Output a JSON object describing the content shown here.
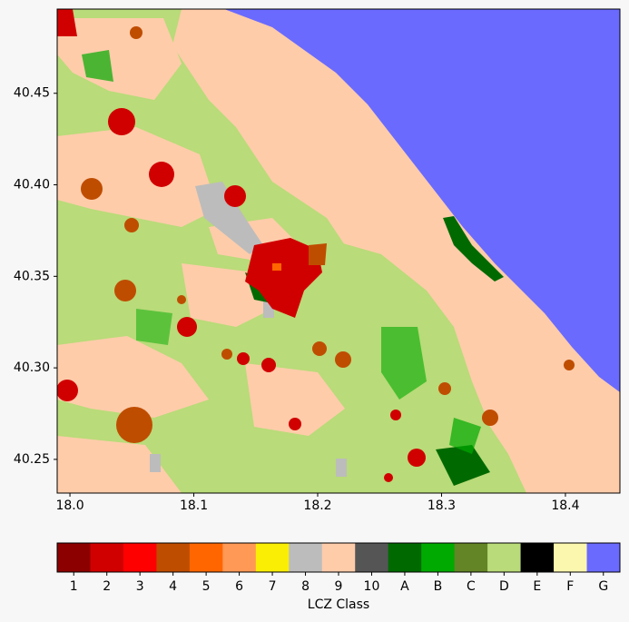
{
  "map": {
    "xlim": [
      17.9897,
      18.444
    ],
    "ylim": [
      40.2316,
      40.496
    ],
    "xticks": [
      {
        "value": 18.0,
        "label": "18.0"
      },
      18.1,
      18.2,
      18.3,
      18.4
    ],
    "yticks": [
      40.45,
      {
        "value": 40.4,
        "label": "40.40"
      },
      40.35,
      {
        "value": 40.3,
        "label": "40.30"
      },
      40.25
    ],
    "colorbar": {
      "label": "LCZ Class",
      "classes": [
        {
          "name": "1",
          "color": "#8c0000"
        },
        {
          "name": "2",
          "color": "#d10000"
        },
        {
          "name": "3",
          "color": "#ff0000"
        },
        {
          "name": "4",
          "color": "#bf4d00"
        },
        {
          "name": "5",
          "color": "#ff6600"
        },
        {
          "name": "6",
          "color": "#ff9955"
        },
        {
          "name": "7",
          "color": "#faee05"
        },
        {
          "name": "8",
          "color": "#bcbcbc"
        },
        {
          "name": "9",
          "color": "#ffccaa"
        },
        {
          "name": "10",
          "color": "#555555"
        },
        {
          "name": "A",
          "color": "#006a00"
        },
        {
          "name": "B",
          "color": "#00aa00"
        },
        {
          "name": "C",
          "color": "#648525"
        },
        {
          "name": "D",
          "color": "#b9db79"
        },
        {
          "name": "E",
          "color": "#000000"
        },
        {
          "name": "F",
          "color": "#fbf7ae"
        },
        {
          "name": "G",
          "color": "#6a6aff"
        }
      ]
    }
  }
}
